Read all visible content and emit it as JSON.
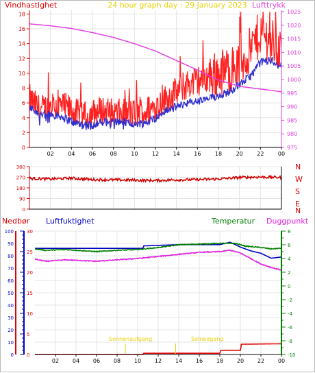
{
  "header": {
    "title": "24 hour graph day : 29 January 2023",
    "left_label": "Vindhastighet",
    "right_label": "Lufttrykk"
  },
  "colors": {
    "title": "#e6d000",
    "wind_label": "#e00000",
    "pressure": "#e040e0",
    "gust": "#ff2020",
    "wind_avg": "#3030d0",
    "direction": "#d00000",
    "rain": "#e00000",
    "humidity": "#0000c0",
    "temperature": "#008000",
    "dewpoint": "#e020e0",
    "sun": "#e6d000",
    "axis": "#000000"
  },
  "lower_labels": {
    "rain": "Nedbør",
    "humidity": "Luftfuktighet",
    "temperature": "Temperatur",
    "dewpoint": "Duggpunkt"
  },
  "annotations": [
    {
      "label": "Sonnenaufgang",
      "hour": 8.8
    },
    {
      "label": "Solnedgang",
      "hour": 13.7
    }
  ],
  "compass": [
    "N",
    "W",
    "S",
    "E",
    "N"
  ],
  "chart_data": [
    {
      "type": "line",
      "title": "24 hour graph day : 29 January 2023",
      "x_ticks": [
        "02",
        "04",
        "06",
        "08",
        "10",
        "12",
        "14",
        "16",
        "18",
        "20",
        "22",
        "00"
      ],
      "xlim": [
        0,
        24
      ],
      "left_axis": {
        "label": "Vindhastighet",
        "ylim": [
          0,
          18.5
        ],
        "ticks": [
          0,
          2,
          4,
          6,
          8,
          10,
          12,
          14,
          16,
          18
        ]
      },
      "right_axis": {
        "label": "Lufttrykk",
        "ylim": [
          975,
          1025.5
        ],
        "ticks": [
          975,
          980,
          985,
          990,
          995,
          1000,
          1005,
          1010,
          1015,
          1020,
          1025
        ]
      },
      "series": [
        {
          "name": "Vindhastighet",
          "axis": "left",
          "x": [
            0,
            1,
            2,
            3,
            4,
            5,
            6,
            7,
            8,
            9,
            10,
            11,
            12,
            13,
            14,
            15,
            16,
            17,
            18,
            19,
            20,
            21,
            22,
            23,
            24
          ],
          "values": [
            6.5,
            5.0,
            5.5,
            5.5,
            5.0,
            4.0,
            4.5,
            5.0,
            4.5,
            4.5,
            4.5,
            4.8,
            5.5,
            6.5,
            7.5,
            8.5,
            9.0,
            9.5,
            10.0,
            10.5,
            11.0,
            13.0,
            15.5,
            14.5,
            13.0
          ]
        },
        {
          "name": "Vindhastighet",
          "axis": "left",
          "x": [
            0,
            1,
            2,
            3,
            4,
            5,
            6,
            7,
            8,
            9,
            10,
            11,
            12,
            13,
            14,
            15,
            16,
            17,
            18,
            19,
            20,
            21,
            22,
            23,
            24
          ],
          "values": [
            5.5,
            4.5,
            4.5,
            4.2,
            3.5,
            3.2,
            3.0,
            3.5,
            3.5,
            3.5,
            3.2,
            3.3,
            4.0,
            5.0,
            5.5,
            6.0,
            6.2,
            6.5,
            7.0,
            7.5,
            8.5,
            9.5,
            11.5,
            11.8,
            11.0
          ]
        },
        {
          "name": "Lufttrykk",
          "axis": "right",
          "x": [
            0,
            2,
            4,
            6,
            8,
            10,
            12,
            14,
            16,
            18,
            20,
            22,
            24
          ],
          "values": [
            1020.5,
            1019.8,
            1018.8,
            1017.3,
            1015.5,
            1013.2,
            1010.5,
            1007.0,
            1003.5,
            999.8,
            997.5,
            996.5,
            995.5
          ]
        }
      ]
    },
    {
      "type": "scatter",
      "x_ticks": [
        "02",
        "04",
        "06",
        "08",
        "10",
        "12",
        "14",
        "16",
        "18",
        "20",
        "22",
        "00"
      ],
      "xlim": [
        0,
        24
      ],
      "ylim": [
        0,
        360
      ],
      "y_ticks": [
        0,
        90,
        180,
        270,
        360
      ],
      "right_labels": [
        "N",
        "W",
        "S",
        "E",
        "N"
      ],
      "series": [
        {
          "name": "",
          "x": [
            0,
            2,
            4,
            6,
            8,
            10,
            12,
            14,
            16,
            18,
            20,
            22,
            24
          ],
          "values": [
            260,
            255,
            262,
            250,
            248,
            245,
            242,
            248,
            250,
            255,
            268,
            272,
            268
          ]
        }
      ]
    },
    {
      "type": "line",
      "x_ticks": [
        "02",
        "04",
        "06",
        "08",
        "10",
        "12",
        "14",
        "16",
        "18",
        "20",
        "22",
        "00"
      ],
      "xlim": [
        0,
        24
      ],
      "axes": {
        "rain": {
          "label": "Nedbør",
          "ylim": [
            0,
            30
          ],
          "ticks": [
            0,
            5,
            10,
            15,
            20,
            25,
            30
          ]
        },
        "humidity": {
          "label": "Luftfuktighet",
          "ylim": [
            0,
            100
          ],
          "ticks": [
            0,
            10,
            20,
            30,
            40,
            50,
            60,
            70,
            80,
            90,
            100
          ]
        },
        "temperature": {
          "label": "Temperatur",
          "ylim": [
            -10,
            8
          ],
          "ticks": [
            -10,
            -8,
            -6,
            -4,
            -2,
            0,
            2,
            4,
            6,
            8
          ]
        }
      },
      "series": [
        {
          "name": "Luftfuktighet",
          "axis": "humidity",
          "x": [
            0,
            4,
            8,
            10.5,
            10.6,
            14,
            18,
            19,
            20,
            21,
            22,
            23,
            24
          ],
          "values": [
            86,
            86,
            86,
            86,
            88,
            89,
            89,
            91,
            87,
            84,
            82,
            78,
            79
          ]
        },
        {
          "name": "Temperatur",
          "axis": "temperature",
          "x": [
            0,
            1,
            3,
            6,
            8,
            10,
            12,
            14,
            18,
            19.5,
            20.5,
            22,
            23,
            24
          ],
          "values": [
            5.4,
            5.2,
            5.3,
            5.0,
            5.2,
            5.3,
            5.6,
            6.0,
            6.2,
            6.2,
            5.8,
            5.6,
            5.4,
            5.5
          ]
        },
        {
          "name": "Duggpunkt",
          "axis": "temperature",
          "x": [
            0,
            1,
            3,
            6,
            8,
            10,
            12,
            14,
            16,
            18,
            19,
            20,
            21,
            22,
            23,
            24
          ],
          "values": [
            3.9,
            3.6,
            3.8,
            3.6,
            3.8,
            4.0,
            4.3,
            4.6,
            4.9,
            5.0,
            5.2,
            4.8,
            4.0,
            3.2,
            2.7,
            2.3
          ]
        },
        {
          "name": "Nedbør",
          "axis": "rain",
          "x": [
            0,
            10.5,
            10.6,
            18,
            18.1,
            20,
            20.1,
            24
          ],
          "values": [
            0,
            0,
            0.3,
            0.3,
            1.0,
            1.0,
            2.5,
            2.6
          ]
        }
      ]
    }
  ]
}
